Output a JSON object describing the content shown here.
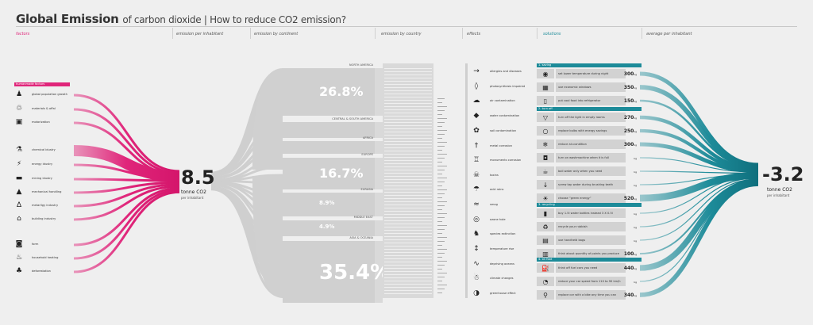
{
  "title": {
    "main": "Global Emission",
    "sub": "of carbon dioxide | How to reduce CO2 emission?"
  },
  "headers": {
    "factors": "factors",
    "per_inhabitant": "emission per inhabitant",
    "by_continent": "emission by continent",
    "by_country": "emission by country",
    "effects": "effects",
    "solutions": "solutions",
    "average": "average per inhabitant"
  },
  "colors": {
    "accent_pink": "#e0257a",
    "accent_teal": "#1d8b99",
    "flow_grey": "#cfcfcf"
  },
  "factors": {
    "category": "humanmade factors",
    "items": [
      {
        "label": "global population growth",
        "icon": "people-icon"
      },
      {
        "label": "materials & offal",
        "icon": "trash-icon"
      },
      {
        "label": "motorization",
        "icon": "car-icon"
      },
      {
        "label": "chemical idustry",
        "icon": "flask-icon"
      },
      {
        "label": "energy idustry",
        "icon": "lightning-icon"
      },
      {
        "label": "mining idustry",
        "icon": "truck-icon"
      },
      {
        "label": "mechanical handling",
        "icon": "factory-icon"
      },
      {
        "label": "metarllgy industry",
        "icon": "furnace-icon"
      },
      {
        "label": "building industry",
        "icon": "house-icon"
      },
      {
        "label": "form",
        "icon": "tractor-icon"
      },
      {
        "label": "household heating",
        "icon": "flame-icon"
      },
      {
        "label": "deforestation",
        "icon": "tree-stump-icon"
      }
    ]
  },
  "emission_per_inhabitant": {
    "value": "8.5",
    "unit": "tonne CO2",
    "sub": "per inhabitant"
  },
  "continents": [
    {
      "name": "NORTH AMERICA",
      "pct": "26.8%"
    },
    {
      "name": "CENTRAL & SOUTH AMERICA",
      "pct": ""
    },
    {
      "name": "AFRICA",
      "pct": ""
    },
    {
      "name": "EUROPE",
      "pct": "16.7%"
    },
    {
      "name": "EURASIA",
      "pct": "8.9%"
    },
    {
      "name": "MIDDLE EAST",
      "pct": "4.9%"
    },
    {
      "name": "ASIA & OCEANIA",
      "pct": "35.4%"
    }
  ],
  "effects": [
    {
      "label": "allergies and diseases",
      "icon": "syringe-icon"
    },
    {
      "label": "photosynthesis impaired",
      "icon": "leaf-icon"
    },
    {
      "label": "air contamination",
      "icon": "cloud-icon"
    },
    {
      "label": "water contamination",
      "icon": "drop-icon"
    },
    {
      "label": "soil contamination",
      "icon": "flower-icon"
    },
    {
      "label": "metal corrosion",
      "icon": "screw-icon"
    },
    {
      "label": "monuments corrosion",
      "icon": "monument-icon"
    },
    {
      "label": "toxins",
      "icon": "skull-icon"
    },
    {
      "label": "acid rains",
      "icon": "rain-icon"
    },
    {
      "label": "smog",
      "icon": "smog-icon"
    },
    {
      "label": "ozone hole",
      "icon": "ozone-icon"
    },
    {
      "label": "species extinction",
      "icon": "animal-icon"
    },
    {
      "label": "temperature rise",
      "icon": "thermometer-icon"
    },
    {
      "label": "depriving oceans",
      "icon": "waves-icon"
    },
    {
      "label": "climate changes",
      "icon": "storm-icon"
    },
    {
      "label": "greenhouse effect",
      "icon": "globe-icon"
    }
  ],
  "solutions": {
    "categories": [
      {
        "name": "1. saving",
        "items": [
          {
            "text": "set lower temperature during night",
            "value": "300",
            "unit": "kg",
            "icon": "thermostat-icon"
          },
          {
            "text": "use economic windows",
            "value": "350",
            "unit": "kg",
            "icon": "window-icon"
          },
          {
            "text": "put cool food into refrigerator",
            "value": "150",
            "unit": "kg",
            "icon": "fridge-icon"
          }
        ]
      },
      {
        "name": "2. turn off",
        "items": [
          {
            "text": "turn off the light in empty rooms",
            "value": "270",
            "unit": "kg",
            "icon": "lamp-icon"
          },
          {
            "text": "replace bulbs with energy savings",
            "value": "250",
            "unit": "kg",
            "icon": "bulb-icon"
          },
          {
            "text": "reduce air-condition",
            "value": "300",
            "unit": "kg",
            "icon": "ac-icon"
          },
          {
            "text": "turn on washmachine when it is full",
            "value": "",
            "unit": "kg",
            "icon": "washer-icon"
          },
          {
            "text": "boil water only when you need",
            "value": "",
            "unit": "kg",
            "icon": "kettle-icon"
          },
          {
            "text": "screw tap water during brushing teeth",
            "value": "",
            "unit": "kg",
            "icon": "tap-icon"
          },
          {
            "text": "choose “green energy”",
            "value": "520",
            "unit": "kg",
            "icon": "sun-icon"
          }
        ]
      },
      {
        "name": "3. recycling",
        "items": [
          {
            "text": "buy 1.5l water bottles instead 3 X 0.5l",
            "value": "",
            "unit": "kg",
            "icon": "bottle-icon"
          },
          {
            "text": "recycle your rubbish",
            "value": "",
            "unit": "kg",
            "icon": "recycle-icon"
          },
          {
            "text": "use handheld bags",
            "value": "",
            "unit": "kg",
            "icon": "bag-icon"
          },
          {
            "text": "think about quantity of points you produce",
            "value": "100",
            "unit": "kg",
            "icon": "bin-icon"
          }
        ]
      },
      {
        "name": "4. on foot",
        "items": [
          {
            "text": "think off fuel cars you need",
            "value": "440",
            "unit": "kg",
            "icon": "fuel-icon"
          },
          {
            "text": "reduce your car speed from 110 to 90 km/h",
            "value": "",
            "unit": "kg",
            "icon": "speedometer-icon"
          },
          {
            "text": "replace car with a bike any time you can",
            "value": "340",
            "unit": "kg",
            "icon": "bike-icon"
          }
        ]
      }
    ]
  },
  "average_per_inhabitant": {
    "value": "-3.2",
    "unit": "tonne CO2",
    "sub": "per inhabitant"
  }
}
